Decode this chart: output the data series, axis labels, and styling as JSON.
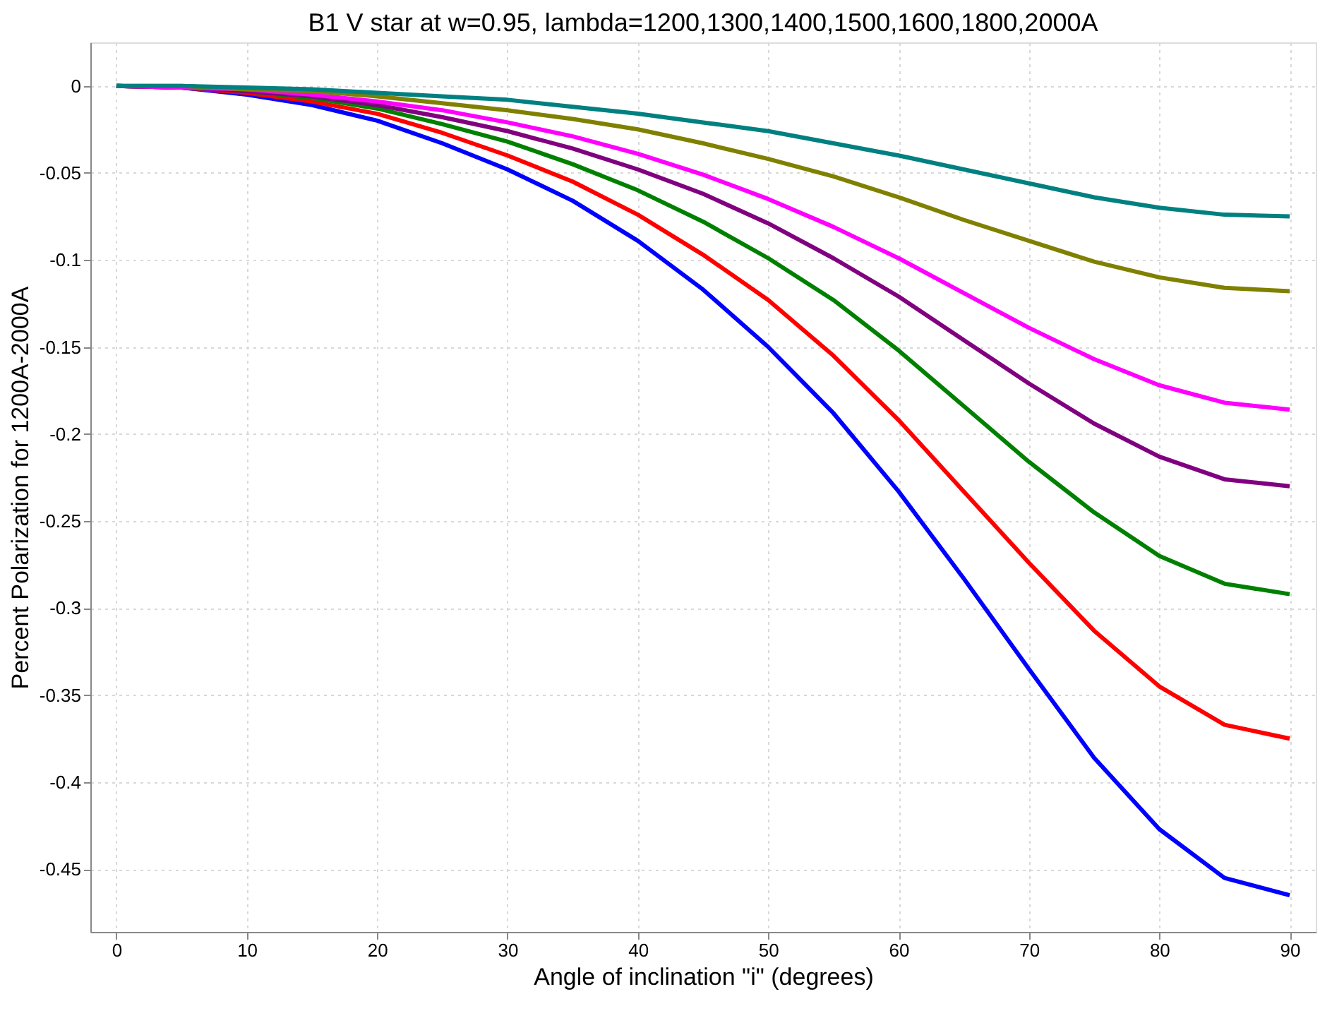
{
  "chart_data": {
    "type": "line",
    "title": "B1 V star at w=0.95, lambda=1200,1300,1400,1500,1600,1800,2000A",
    "xlabel": "Angle of inclination \"i\" (degrees)",
    "ylabel": "Percent Polarization for 1200A-2000A",
    "x": [
      0,
      5,
      10,
      15,
      20,
      25,
      30,
      35,
      40,
      45,
      50,
      55,
      60,
      65,
      70,
      75,
      80,
      85,
      90
    ],
    "series": [
      {
        "color": "#0000ff",
        "values": [
          0,
          -0.001,
          -0.005,
          -0.011,
          -0.02,
          -0.033,
          -0.048,
          -0.066,
          -0.089,
          -0.117,
          -0.15,
          -0.188,
          -0.233,
          -0.283,
          -0.335,
          -0.386,
          -0.427,
          -0.455,
          -0.465
        ]
      },
      {
        "color": "#ff0000",
        "values": [
          0,
          -0.001,
          -0.004,
          -0.009,
          -0.016,
          -0.027,
          -0.04,
          -0.055,
          -0.074,
          -0.097,
          -0.123,
          -0.155,
          -0.192,
          -0.233,
          -0.274,
          -0.313,
          -0.345,
          -0.367,
          -0.375
        ]
      },
      {
        "color": "#008000",
        "values": [
          0,
          -0.001,
          -0.003,
          -0.007,
          -0.013,
          -0.022,
          -0.032,
          -0.045,
          -0.06,
          -0.078,
          -0.099,
          -0.123,
          -0.152,
          -0.184,
          -0.216,
          -0.245,
          -0.27,
          -0.286,
          -0.292
        ]
      },
      {
        "color": "#800080",
        "values": [
          0,
          -0.001,
          -0.003,
          -0.006,
          -0.011,
          -0.018,
          -0.026,
          -0.036,
          -0.048,
          -0.062,
          -0.079,
          -0.099,
          -0.121,
          -0.146,
          -0.171,
          -0.194,
          -0.213,
          -0.226,
          -0.23
        ]
      },
      {
        "color": "#ff00ff",
        "values": [
          0,
          -0.001,
          -0.002,
          -0.005,
          -0.009,
          -0.014,
          -0.021,
          -0.029,
          -0.039,
          -0.051,
          -0.065,
          -0.081,
          -0.099,
          -0.119,
          -0.139,
          -0.157,
          -0.172,
          -0.182,
          -0.186
        ]
      },
      {
        "color": "#808000",
        "values": [
          0,
          0,
          -0.002,
          -0.003,
          -0.006,
          -0.01,
          -0.014,
          -0.019,
          -0.025,
          -0.033,
          -0.042,
          -0.052,
          -0.064,
          -0.077,
          -0.089,
          -0.101,
          -0.11,
          -0.116,
          -0.118
        ]
      },
      {
        "color": "#008080",
        "values": [
          0,
          0,
          -0.001,
          -0.002,
          -0.004,
          -0.006,
          -0.008,
          -0.012,
          -0.016,
          -0.021,
          -0.026,
          -0.033,
          -0.04,
          -0.048,
          -0.056,
          -0.064,
          -0.07,
          -0.074,
          -0.075
        ]
      }
    ],
    "xlim": [
      -2,
      92
    ],
    "xticks": [
      0,
      10,
      20,
      30,
      40,
      50,
      60,
      70,
      80,
      90
    ],
    "ylim": [
      -0.486,
      0.025
    ],
    "yticks": [
      0,
      -0.05,
      -0.1,
      -0.15,
      -0.2,
      -0.25,
      -0.3,
      -0.35,
      -0.4,
      -0.45
    ],
    "grid": true,
    "legend": false,
    "marker": "none",
    "line_style": "solid"
  }
}
